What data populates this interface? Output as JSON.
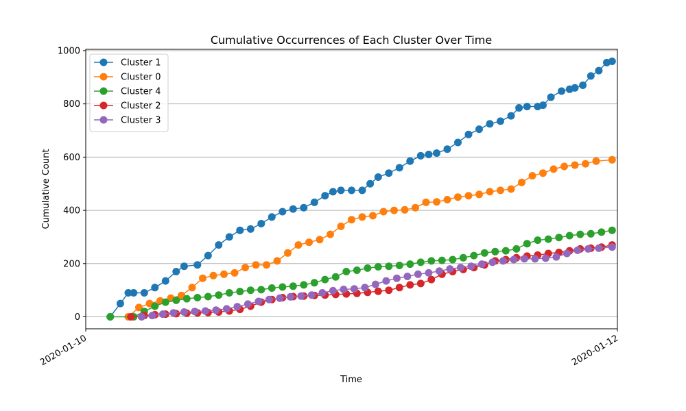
{
  "chart_data": {
    "type": "line",
    "title": "Cumulative Occurrences of Each Cluster Over Time",
    "xlabel": "Time",
    "ylabel": "Cumulative Count",
    "x_unit": "days",
    "xlim": [
      0,
      2
    ],
    "ylim": [
      -45,
      1005
    ],
    "x_ticks": [
      {
        "value": 0,
        "label": "2020-01-10"
      },
      {
        "value": 2,
        "label": "2020-01-12"
      }
    ],
    "y_ticks": [
      0,
      200,
      400,
      600,
      800,
      1000
    ],
    "grid": "y-axis",
    "legend_position": "top-left",
    "series": [
      {
        "name": "Cluster 1",
        "color": "#1f77b4",
        "points": [
          [
            0.092,
            0
          ],
          [
            0.13,
            50
          ],
          [
            0.16,
            90
          ],
          [
            0.18,
            90
          ],
          [
            0.22,
            90
          ],
          [
            0.26,
            110
          ],
          [
            0.3,
            135
          ],
          [
            0.34,
            170
          ],
          [
            0.37,
            190
          ],
          [
            0.42,
            195
          ],
          [
            0.46,
            230
          ],
          [
            0.5,
            270
          ],
          [
            0.54,
            300
          ],
          [
            0.58,
            325
          ],
          [
            0.62,
            330
          ],
          [
            0.66,
            350
          ],
          [
            0.7,
            375
          ],
          [
            0.74,
            395
          ],
          [
            0.78,
            405
          ],
          [
            0.82,
            410
          ],
          [
            0.86,
            430
          ],
          [
            0.9,
            455
          ],
          [
            0.93,
            470
          ],
          [
            0.96,
            475
          ],
          [
            1.0,
            475
          ],
          [
            1.04,
            475
          ],
          [
            1.07,
            500
          ],
          [
            1.1,
            525
          ],
          [
            1.14,
            540
          ],
          [
            1.18,
            560
          ],
          [
            1.22,
            585
          ],
          [
            1.26,
            605
          ],
          [
            1.29,
            610
          ],
          [
            1.32,
            615
          ],
          [
            1.36,
            630
          ],
          [
            1.4,
            655
          ],
          [
            1.44,
            685
          ],
          [
            1.48,
            705
          ],
          [
            1.52,
            725
          ],
          [
            1.56,
            735
          ],
          [
            1.6,
            755
          ],
          [
            1.63,
            785
          ],
          [
            1.66,
            790
          ],
          [
            1.7,
            790
          ],
          [
            1.72,
            795
          ],
          [
            1.75,
            825
          ],
          [
            1.79,
            848
          ],
          [
            1.82,
            855
          ],
          [
            1.84,
            860
          ],
          [
            1.87,
            870
          ],
          [
            1.9,
            905
          ],
          [
            1.93,
            925
          ],
          [
            1.96,
            955
          ],
          [
            1.98,
            960
          ]
        ]
      },
      {
        "name": "Cluster 0",
        "color": "#ff7f0e",
        "points": [
          [
            0.16,
            0
          ],
          [
            0.2,
            35
          ],
          [
            0.24,
            50
          ],
          [
            0.28,
            60
          ],
          [
            0.32,
            70
          ],
          [
            0.36,
            80
          ],
          [
            0.4,
            110
          ],
          [
            0.44,
            145
          ],
          [
            0.48,
            155
          ],
          [
            0.52,
            160
          ],
          [
            0.56,
            165
          ],
          [
            0.6,
            185
          ],
          [
            0.64,
            195
          ],
          [
            0.68,
            195
          ],
          [
            0.72,
            210
          ],
          [
            0.76,
            240
          ],
          [
            0.8,
            270
          ],
          [
            0.84,
            280
          ],
          [
            0.88,
            290
          ],
          [
            0.92,
            310
          ],
          [
            0.96,
            340
          ],
          [
            1.0,
            365
          ],
          [
            1.04,
            375
          ],
          [
            1.08,
            380
          ],
          [
            1.12,
            395
          ],
          [
            1.16,
            400
          ],
          [
            1.2,
            402
          ],
          [
            1.24,
            410
          ],
          [
            1.28,
            430
          ],
          [
            1.32,
            432
          ],
          [
            1.36,
            440
          ],
          [
            1.4,
            450
          ],
          [
            1.44,
            455
          ],
          [
            1.48,
            460
          ],
          [
            1.52,
            470
          ],
          [
            1.56,
            475
          ],
          [
            1.6,
            480
          ],
          [
            1.64,
            505
          ],
          [
            1.68,
            530
          ],
          [
            1.72,
            540
          ],
          [
            1.76,
            555
          ],
          [
            1.8,
            565
          ],
          [
            1.84,
            570
          ],
          [
            1.88,
            575
          ],
          [
            1.92,
            585
          ],
          [
            1.98,
            590
          ]
        ]
      },
      {
        "name": "Cluster 4",
        "color": "#2ca02c",
        "points": [
          [
            0.092,
            0
          ],
          [
            0.18,
            0
          ],
          [
            0.22,
            20
          ],
          [
            0.26,
            40
          ],
          [
            0.3,
            55
          ],
          [
            0.34,
            62
          ],
          [
            0.38,
            68
          ],
          [
            0.42,
            72
          ],
          [
            0.46,
            76
          ],
          [
            0.5,
            82
          ],
          [
            0.54,
            90
          ],
          [
            0.58,
            95
          ],
          [
            0.62,
            100
          ],
          [
            0.66,
            102
          ],
          [
            0.7,
            108
          ],
          [
            0.74,
            112
          ],
          [
            0.78,
            115
          ],
          [
            0.82,
            120
          ],
          [
            0.86,
            128
          ],
          [
            0.9,
            140
          ],
          [
            0.94,
            150
          ],
          [
            0.98,
            170
          ],
          [
            1.02,
            175
          ],
          [
            1.06,
            183
          ],
          [
            1.1,
            188
          ],
          [
            1.14,
            190
          ],
          [
            1.18,
            193
          ],
          [
            1.22,
            198
          ],
          [
            1.26,
            205
          ],
          [
            1.3,
            210
          ],
          [
            1.34,
            212
          ],
          [
            1.38,
            215
          ],
          [
            1.42,
            222
          ],
          [
            1.46,
            230
          ],
          [
            1.5,
            240
          ],
          [
            1.54,
            245
          ],
          [
            1.58,
            248
          ],
          [
            1.62,
            255
          ],
          [
            1.66,
            275
          ],
          [
            1.7,
            288
          ],
          [
            1.74,
            292
          ],
          [
            1.78,
            298
          ],
          [
            1.82,
            305
          ],
          [
            1.86,
            310
          ],
          [
            1.9,
            312
          ],
          [
            1.94,
            318
          ],
          [
            1.98,
            325
          ]
        ]
      },
      {
        "name": "Cluster 2",
        "color": "#d62728",
        "points": [
          [
            0.17,
            0
          ],
          [
            0.22,
            5
          ],
          [
            0.26,
            8
          ],
          [
            0.3,
            10
          ],
          [
            0.34,
            12
          ],
          [
            0.38,
            14
          ],
          [
            0.42,
            15
          ],
          [
            0.46,
            16
          ],
          [
            0.5,
            18
          ],
          [
            0.54,
            22
          ],
          [
            0.58,
            28
          ],
          [
            0.62,
            40
          ],
          [
            0.66,
            55
          ],
          [
            0.7,
            65
          ],
          [
            0.74,
            72
          ],
          [
            0.78,
            76
          ],
          [
            0.82,
            78
          ],
          [
            0.86,
            80
          ],
          [
            0.9,
            82
          ],
          [
            0.94,
            84
          ],
          [
            0.98,
            86
          ],
          [
            1.02,
            88
          ],
          [
            1.06,
            92
          ],
          [
            1.1,
            96
          ],
          [
            1.14,
            100
          ],
          [
            1.18,
            110
          ],
          [
            1.22,
            120
          ],
          [
            1.26,
            125
          ],
          [
            1.3,
            140
          ],
          [
            1.34,
            160
          ],
          [
            1.38,
            170
          ],
          [
            1.42,
            178
          ],
          [
            1.46,
            185
          ],
          [
            1.5,
            195
          ],
          [
            1.54,
            210
          ],
          [
            1.58,
            215
          ],
          [
            1.62,
            222
          ],
          [
            1.66,
            228
          ],
          [
            1.7,
            232
          ],
          [
            1.74,
            238
          ],
          [
            1.78,
            242
          ],
          [
            1.82,
            248
          ],
          [
            1.86,
            255
          ],
          [
            1.9,
            258
          ],
          [
            1.94,
            262
          ],
          [
            1.98,
            270
          ]
        ]
      },
      {
        "name": "Cluster 3",
        "color": "#9467bd",
        "points": [
          [
            0.21,
            0
          ],
          [
            0.25,
            5
          ],
          [
            0.29,
            10
          ],
          [
            0.33,
            15
          ],
          [
            0.37,
            18
          ],
          [
            0.41,
            20
          ],
          [
            0.45,
            22
          ],
          [
            0.49,
            25
          ],
          [
            0.53,
            30
          ],
          [
            0.57,
            38
          ],
          [
            0.61,
            48
          ],
          [
            0.65,
            58
          ],
          [
            0.69,
            65
          ],
          [
            0.73,
            70
          ],
          [
            0.77,
            75
          ],
          [
            0.81,
            78
          ],
          [
            0.85,
            82
          ],
          [
            0.89,
            90
          ],
          [
            0.93,
            98
          ],
          [
            0.97,
            103
          ],
          [
            1.01,
            105
          ],
          [
            1.05,
            110
          ],
          [
            1.09,
            122
          ],
          [
            1.13,
            135
          ],
          [
            1.17,
            145
          ],
          [
            1.21,
            152
          ],
          [
            1.25,
            160
          ],
          [
            1.29,
            165
          ],
          [
            1.33,
            172
          ],
          [
            1.37,
            180
          ],
          [
            1.41,
            185
          ],
          [
            1.45,
            190
          ],
          [
            1.49,
            198
          ],
          [
            1.53,
            205
          ],
          [
            1.57,
            210
          ],
          [
            1.61,
            215
          ],
          [
            1.65,
            218
          ],
          [
            1.69,
            218
          ],
          [
            1.73,
            220
          ],
          [
            1.77,
            225
          ],
          [
            1.81,
            238
          ],
          [
            1.85,
            250
          ],
          [
            1.89,
            255
          ],
          [
            1.93,
            258
          ],
          [
            1.98,
            262
          ]
        ]
      }
    ]
  }
}
